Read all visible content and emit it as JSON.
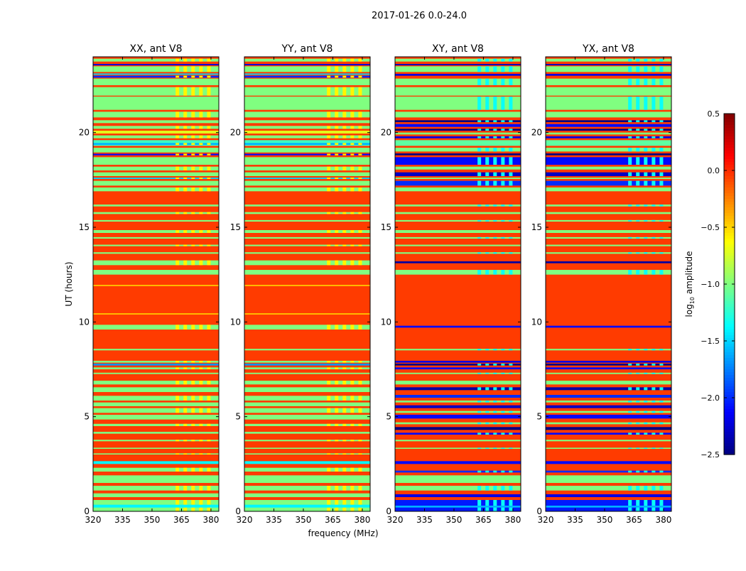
{
  "chart_data": {
    "type": "heatmap",
    "title": "2017-01-26 0.0-24.0",
    "xlabel": "frequency (MHz)",
    "ylabel": "UT (hours)",
    "xlim": [
      320,
      384
    ],
    "ylim": [
      0,
      24
    ],
    "xticks": [
      "320",
      "335",
      "350",
      "365",
      "380"
    ],
    "xtick_values": [
      320,
      335,
      350,
      365,
      380
    ],
    "yticks": [
      "0",
      "5",
      "10",
      "15",
      "20"
    ],
    "ytick_values": [
      0,
      5,
      10,
      15,
      20
    ],
    "colorbar": {
      "label": "log10 amplitude",
      "label_main": "log",
      "label_sub": "10",
      "label_rest": " amplitude",
      "range": [
        -2.5,
        0.5
      ],
      "ticks": [
        "0.5",
        "0.0",
        "−0.5",
        "−1.0",
        "−1.5",
        "−2.0",
        "−2.5"
      ],
      "tick_values": [
        0.5,
        0.0,
        -0.5,
        -1.0,
        -1.5,
        -2.0,
        -2.5
      ],
      "colormap": "jet"
    },
    "panels": [
      {
        "title": "XX, ant V8",
        "type": "parallel",
        "default_value": -0.05
      },
      {
        "title": "YY, ant V8",
        "type": "parallel",
        "default_value": -0.05
      },
      {
        "title": "XY, ant V8",
        "type": "cross",
        "default_value": -0.05
      },
      {
        "title": "YX, ant V8",
        "type": "cross",
        "default_value": -0.05
      }
    ],
    "bands_parallel": [
      [
        23.75,
        23.9,
        -1.0
      ],
      [
        23.55,
        23.62,
        -2.2
      ],
      [
        23.2,
        23.5,
        -1.0
      ],
      [
        23.05,
        23.12,
        -1.5
      ],
      [
        22.9,
        23.0,
        -2.0
      ],
      [
        22.5,
        22.85,
        -1.0
      ],
      [
        21.95,
        22.4,
        -1.0
      ],
      [
        21.2,
        21.9,
        -1.0
      ],
      [
        20.8,
        21.1,
        -1.0
      ],
      [
        20.5,
        20.65,
        -1.0
      ],
      [
        20.2,
        20.35,
        -1.0
      ],
      [
        19.95,
        20.1,
        -0.7
      ],
      [
        19.7,
        19.85,
        -1.0
      ],
      [
        19.3,
        19.6,
        -1.2
      ],
      [
        19.35,
        19.45,
        -1.6
      ],
      [
        18.95,
        19.2,
        -1.0
      ],
      [
        18.8,
        18.88,
        -2.1
      ],
      [
        18.3,
        18.7,
        -1.0
      ],
      [
        18.0,
        18.2,
        -1.0
      ],
      [
        17.7,
        17.9,
        -1.0
      ],
      [
        17.55,
        17.62,
        -1.5
      ],
      [
        17.2,
        17.45,
        -1.0
      ],
      [
        16.9,
        17.1,
        -1.0
      ],
      [
        16.1,
        16.2,
        -1.0
      ],
      [
        15.7,
        15.8,
        -1.0
      ],
      [
        15.3,
        15.38,
        -1.0
      ],
      [
        14.7,
        14.85,
        -1.0
      ],
      [
        14.4,
        14.48,
        -1.0
      ],
      [
        14.0,
        14.08,
        -1.0
      ],
      [
        13.6,
        13.68,
        -1.0
      ],
      [
        13.0,
        13.25,
        -1.0
      ],
      [
        12.5,
        12.75,
        -1.0
      ],
      [
        11.9,
        11.95,
        -0.6
      ],
      [
        10.4,
        10.45,
        -0.6
      ],
      [
        9.6,
        9.85,
        -1.0
      ],
      [
        8.5,
        8.58,
        -1.0
      ],
      [
        7.85,
        7.95,
        -1.0
      ],
      [
        7.7,
        7.8,
        -1.7
      ],
      [
        7.5,
        7.6,
        -1.0
      ],
      [
        7.25,
        7.32,
        -1.0
      ],
      [
        6.7,
        6.9,
        -1.0
      ],
      [
        6.3,
        6.55,
        -1.0
      ],
      [
        5.85,
        6.1,
        -1.0
      ],
      [
        5.55,
        5.75,
        -1.0
      ],
      [
        5.2,
        5.45,
        -1.0
      ],
      [
        4.85,
        5.1,
        -1.0
      ],
      [
        4.5,
        4.62,
        -1.0
      ],
      [
        4.1,
        4.2,
        -1.0
      ],
      [
        3.7,
        3.78,
        -1.0
      ],
      [
        3.3,
        3.36,
        -1.0
      ],
      [
        3.0,
        3.06,
        -1.0
      ],
      [
        2.5,
        2.65,
        -1.4
      ],
      [
        2.1,
        2.3,
        -1.0
      ],
      [
        1.5,
        1.9,
        -1.0
      ],
      [
        1.1,
        1.35,
        -1.0
      ],
      [
        0.75,
        0.95,
        -1.0
      ],
      [
        0.0,
        0.6,
        -1.0
      ],
      [
        0.2,
        0.35,
        -1.4
      ]
    ],
    "bands_cross": [
      [
        23.75,
        23.9,
        -1.0
      ],
      [
        23.55,
        23.62,
        -2.3
      ],
      [
        23.2,
        23.5,
        -1.0
      ],
      [
        23.0,
        23.1,
        -2.2
      ],
      [
        22.5,
        22.85,
        -1.0
      ],
      [
        21.95,
        22.4,
        -1.0
      ],
      [
        21.2,
        21.9,
        -1.0
      ],
      [
        20.8,
        21.1,
        -1.0
      ],
      [
        20.55,
        20.65,
        -2.5
      ],
      [
        20.3,
        20.45,
        -2.1
      ],
      [
        20.1,
        20.2,
        -2.5
      ],
      [
        19.9,
        20.0,
        -1.0
      ],
      [
        19.7,
        19.8,
        -2.2
      ],
      [
        19.3,
        19.6,
        -1.1
      ],
      [
        19.0,
        19.2,
        -1.0
      ],
      [
        18.8,
        18.9,
        -2.5
      ],
      [
        18.3,
        18.7,
        -2.1
      ],
      [
        18.05,
        18.2,
        -1.0
      ],
      [
        17.7,
        17.9,
        -2.3
      ],
      [
        17.55,
        17.62,
        -1.0
      ],
      [
        17.2,
        17.45,
        -2.0
      ],
      [
        16.9,
        17.1,
        -1.0
      ],
      [
        16.1,
        16.2,
        -1.0
      ],
      [
        15.7,
        15.8,
        -1.0
      ],
      [
        15.3,
        15.38,
        -1.0
      ],
      [
        14.7,
        14.85,
        -1.0
      ],
      [
        14.4,
        14.48,
        -1.0
      ],
      [
        14.0,
        14.08,
        -1.0
      ],
      [
        13.6,
        13.68,
        -1.0
      ],
      [
        13.1,
        13.2,
        -2.4
      ],
      [
        12.5,
        12.75,
        -1.0
      ],
      [
        9.7,
        9.8,
        -2.1
      ],
      [
        8.5,
        8.58,
        -1.0
      ],
      [
        7.85,
        7.95,
        -2.2
      ],
      [
        7.7,
        7.8,
        -2.5
      ],
      [
        7.5,
        7.6,
        -2.1
      ],
      [
        7.25,
        7.32,
        -1.0
      ],
      [
        6.7,
        6.9,
        -1.0
      ],
      [
        6.4,
        6.55,
        -2.4
      ],
      [
        6.0,
        6.15,
        -2.0
      ],
      [
        5.75,
        5.85,
        -1.0
      ],
      [
        5.45,
        5.6,
        -2.3
      ],
      [
        5.2,
        5.3,
        -1.0
      ],
      [
        4.9,
        5.1,
        -2.1
      ],
      [
        4.6,
        4.7,
        -1.0
      ],
      [
        4.3,
        4.45,
        -2.5
      ],
      [
        4.05,
        4.15,
        -2.1
      ],
      [
        3.7,
        3.78,
        -1.0
      ],
      [
        3.3,
        3.36,
        -1.0
      ],
      [
        2.5,
        2.65,
        -2.1
      ],
      [
        2.05,
        2.15,
        -2.0
      ],
      [
        1.5,
        1.9,
        -1.0
      ],
      [
        1.1,
        1.35,
        -1.0
      ],
      [
        0.75,
        0.9,
        -2.2
      ],
      [
        0.0,
        0.6,
        -2.05
      ],
      [
        0.2,
        0.3,
        -1.6
      ]
    ],
    "rfi_region_mhz": [
      362,
      380
    ]
  }
}
